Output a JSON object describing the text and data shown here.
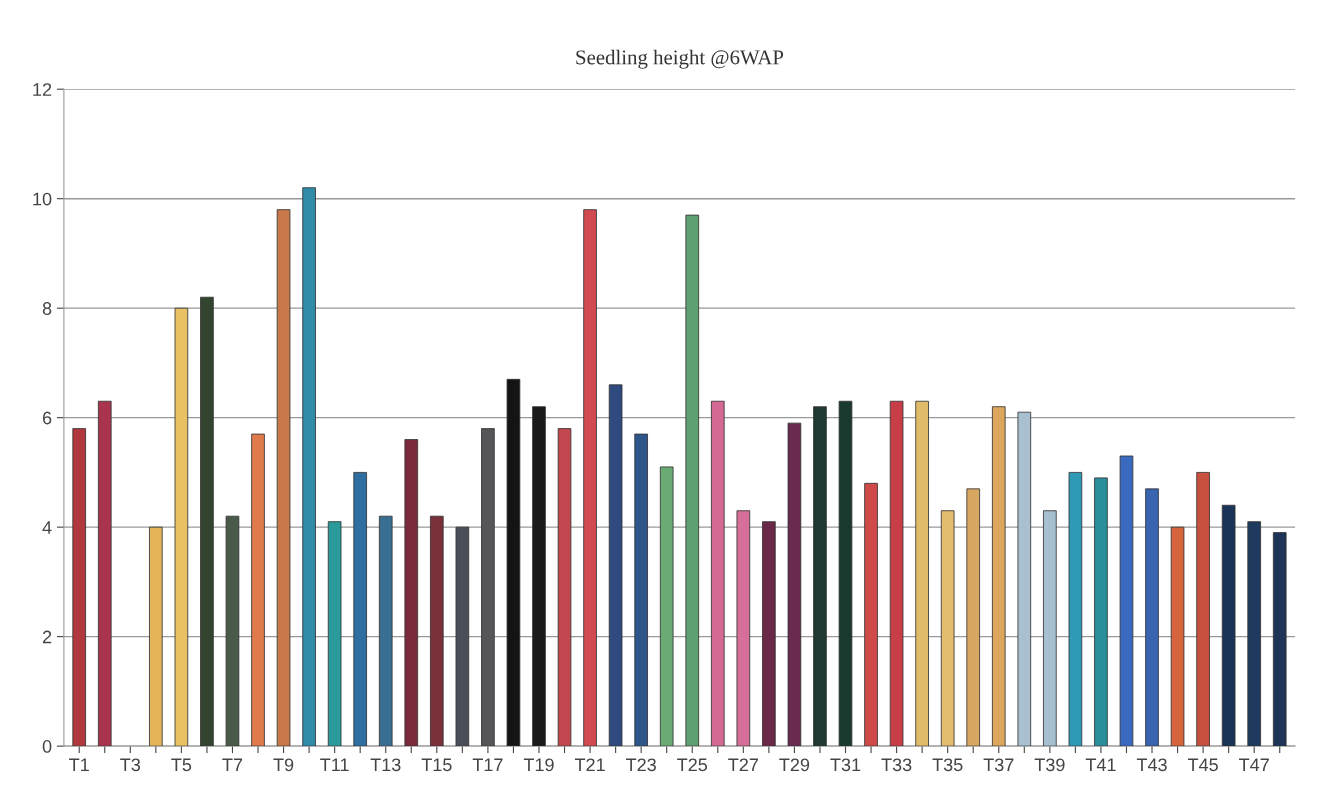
{
  "chart_data": {
    "type": "bar",
    "title": "Seedling height @6WAP",
    "categories": [
      "T1",
      null,
      "T3",
      null,
      "T5",
      null,
      "T7",
      null,
      "T9",
      null,
      "T11",
      null,
      "T13",
      null,
      "T15",
      null,
      "T17",
      null,
      "T19",
      null,
      "T21",
      null,
      "T23",
      null,
      "T25",
      null,
      "T27",
      null,
      "T29",
      null,
      "T31",
      null,
      "T33",
      null,
      "T35",
      null,
      "T37",
      null,
      "T39",
      null,
      "T41",
      null,
      "T43",
      null,
      "T45",
      null,
      "T47",
      null
    ],
    "values": [
      5.8,
      6.3,
      null,
      4.0,
      8.0,
      8.2,
      4.2,
      5.7,
      9.8,
      10.2,
      4.1,
      5.0,
      4.2,
      5.6,
      4.2,
      4.0,
      5.8,
      6.7,
      6.2,
      5.8,
      9.8,
      6.6,
      5.7,
      5.1,
      9.7,
      6.3,
      4.3,
      4.1,
      5.9,
      6.2,
      6.3,
      4.8,
      6.3,
      6.3,
      4.3,
      4.7,
      6.2,
      6.1,
      4.3,
      5.0,
      4.9,
      5.3,
      4.7,
      4.0,
      5.0,
      4.4,
      4.1,
      3.9
    ],
    "colors": [
      "#b0383f",
      "#a8344e",
      null,
      "#e3b45a",
      "#e9c163",
      "#334430",
      "#4a5a48",
      "#e07a4c",
      "#c8784a",
      "#2f8ba8",
      "#2a9a9a",
      "#2f6ea0",
      "#3a6f94",
      "#7a2a3a",
      "#7a3038",
      "#4a4e58",
      "#55555a",
      "#141414",
      "#1a1a1a",
      "#c24850",
      "#d04a50",
      "#2e4a7e",
      "#2e558a",
      "#6aaa74",
      "#5fa070",
      "#d46a94",
      "#d6709a",
      "#6a2848",
      "#6a2a50",
      "#1e3a32",
      "#1a3a30",
      "#d04a4a",
      "#c83e48",
      "#e0bb6a",
      "#e2bd6e",
      "#d8a862",
      "#dca65c",
      "#a8c0d0",
      "#a6c0d2",
      "#2f9ab5",
      "#2a8e9c",
      "#3a6ac0",
      "#3a64b0",
      "#d6643c",
      "#c8503e",
      "#1a3458",
      "#1e3a5e",
      "#1e3458"
    ],
    "ylim": [
      0,
      12
    ],
    "yticks": [
      0,
      2,
      4,
      6,
      8,
      10,
      12
    ],
    "grid": "y"
  }
}
